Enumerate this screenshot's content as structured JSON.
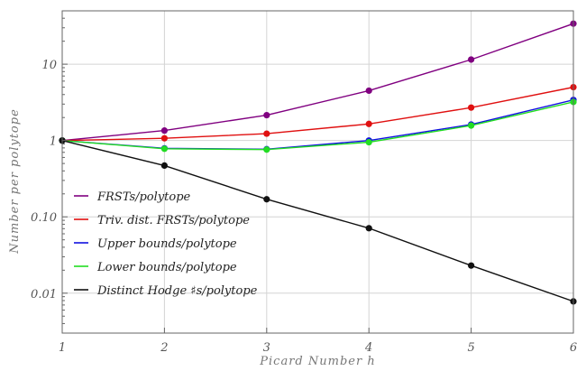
{
  "chart_data": {
    "type": "line",
    "title": "",
    "xlabel": "Picard Number h",
    "ylabel": "Number per polytope",
    "x": [
      1,
      2,
      3,
      4,
      5,
      6
    ],
    "xlim": [
      1,
      6
    ],
    "ylim": [
      0.003,
      50
    ],
    "yscale": "log",
    "grid": true,
    "legend_position": "bottom-left",
    "x_tick_labels": [
      "1",
      "2",
      "3",
      "4",
      "5",
      "6"
    ],
    "y_ticks": [
      0.01,
      0.1,
      1,
      10
    ],
    "y_tick_labels": [
      "0.01",
      "0.10",
      "1",
      "10"
    ],
    "series": [
      {
        "name": "FRSTs/polytope",
        "color": "#800080",
        "values": [
          1,
          1.35,
          2.15,
          4.5,
          11.5,
          34
        ]
      },
      {
        "name": "Triv. dist. FRSTs/polytope",
        "color": "#e01010",
        "values": [
          1,
          1.07,
          1.23,
          1.65,
          2.7,
          5.0
        ]
      },
      {
        "name": "Upper bounds/polytope",
        "color": "#1010e0",
        "values": [
          1,
          0.79,
          0.77,
          1.0,
          1.62,
          3.4
        ]
      },
      {
        "name": "Lower bounds/polytope",
        "color": "#22dd22",
        "values": [
          1,
          0.78,
          0.76,
          0.95,
          1.57,
          3.2
        ]
      },
      {
        "name": "Distinct Hodge ♯s/polytope",
        "color": "#111111",
        "values": [
          1,
          0.47,
          0.17,
          0.071,
          0.023,
          0.0078
        ]
      }
    ]
  }
}
